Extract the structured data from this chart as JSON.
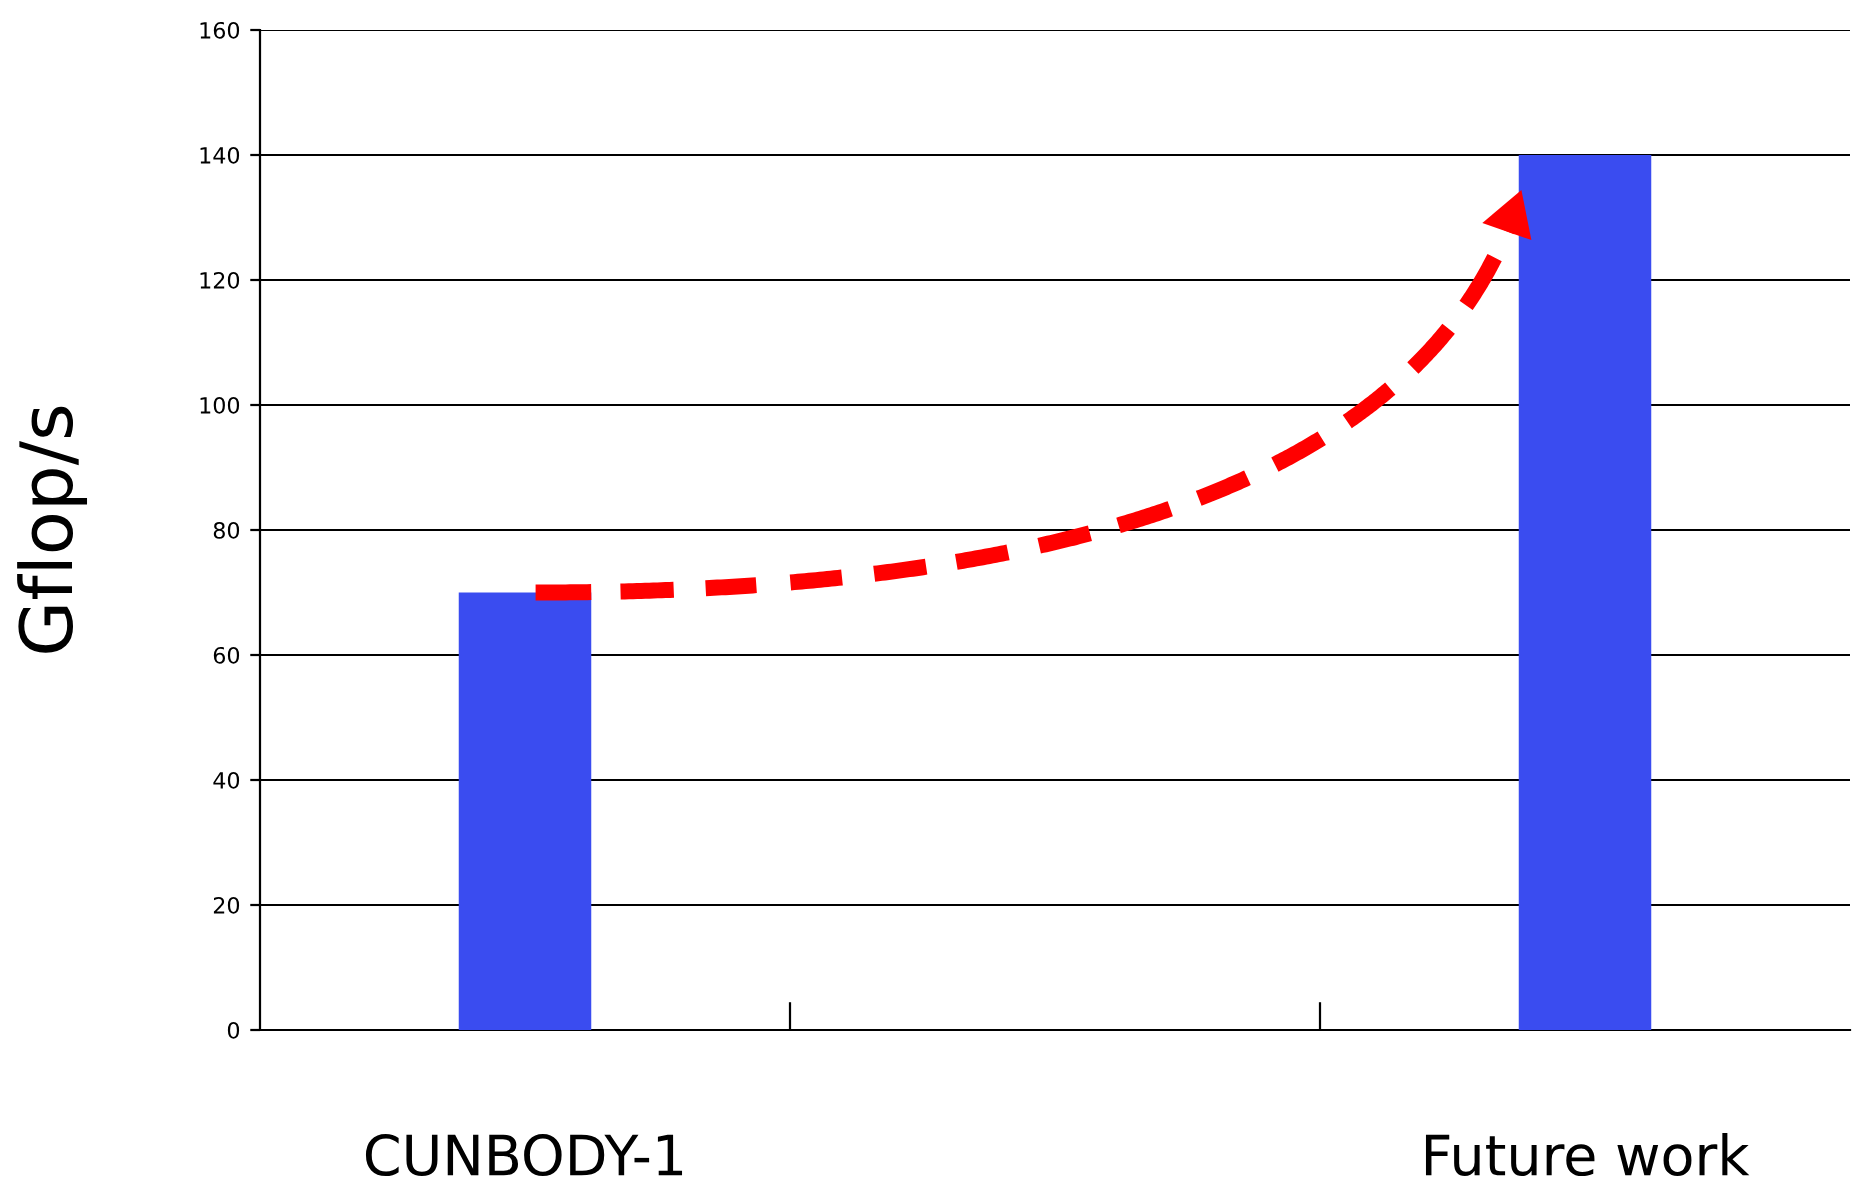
{
  "chart_data": {
    "type": "bar",
    "ylabel": "Gflop/s",
    "categories": [
      "CUNBODY-1",
      null,
      "Future work"
    ],
    "values": [
      70,
      null,
      140
    ],
    "color": "#3a4cf0",
    "ylim": [
      0,
      160
    ],
    "yticks": [
      0,
      20,
      40,
      60,
      80,
      100,
      120,
      140,
      160
    ],
    "grid": "y"
  }
}
